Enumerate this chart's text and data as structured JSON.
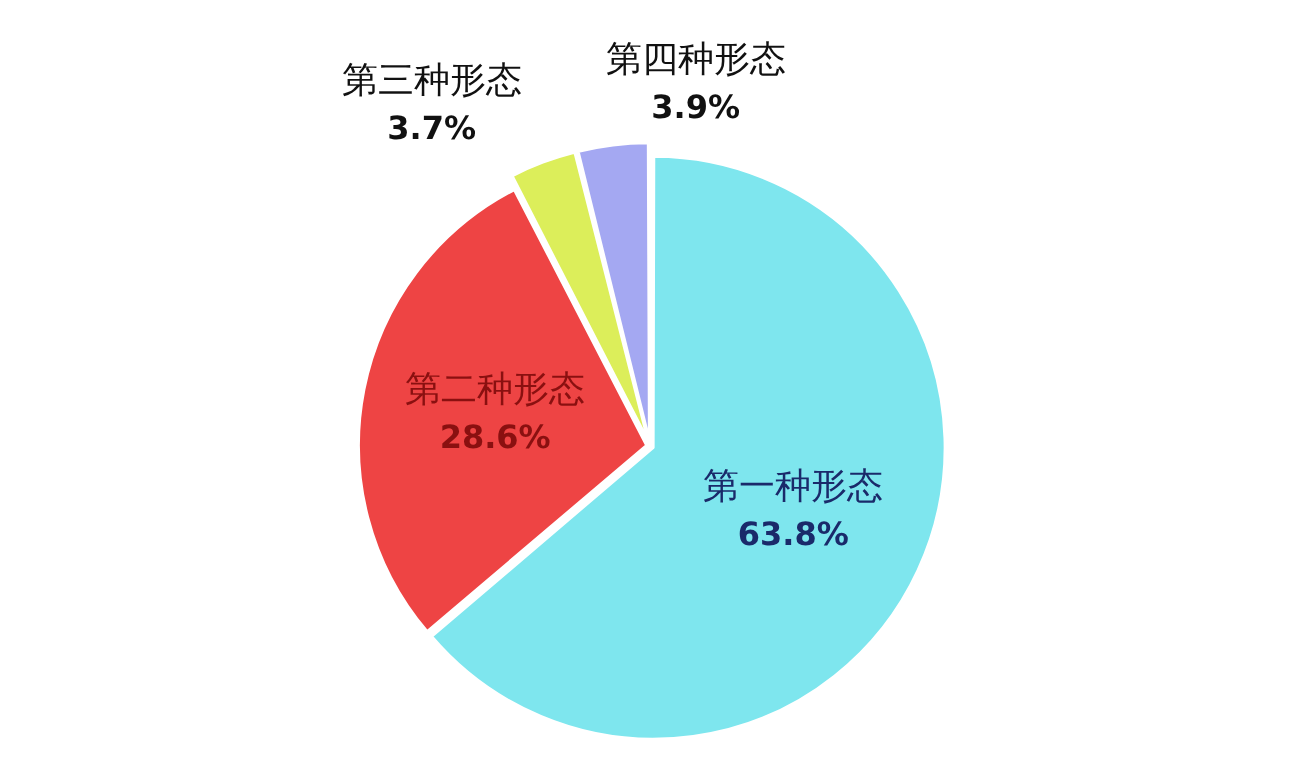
{
  "chart_data": {
    "type": "pie",
    "categories": [
      "第一种形态",
      "第二种形态",
      "第三种形态",
      "第四种形态"
    ],
    "values": [
      63.8,
      28.6,
      3.7,
      3.9
    ],
    "value_labels": [
      "63.8%",
      "28.6%",
      "3.7%",
      "3.9%"
    ],
    "colors": [
      "#7ee6ee",
      "#ee4444",
      "#dcee5a",
      "#a4a8f2"
    ]
  }
}
